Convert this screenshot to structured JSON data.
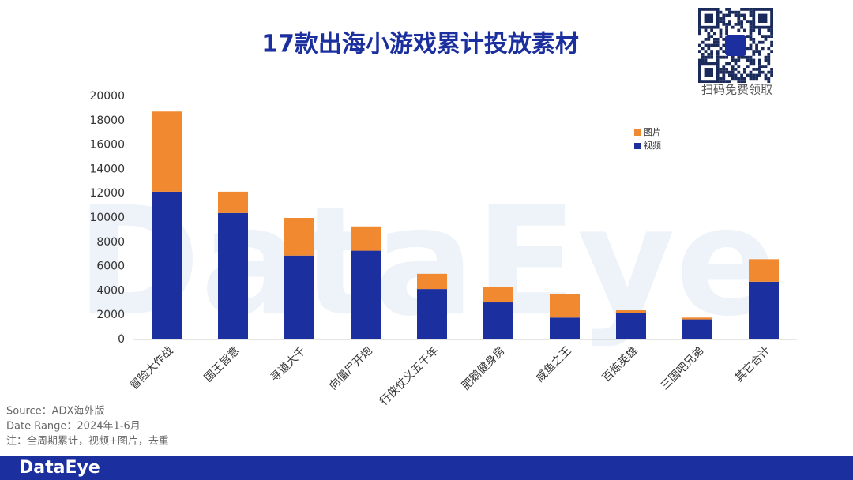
{
  "chart_data": {
    "type": "stacked_bar",
    "title": "17款出海小游戏累计投放素材",
    "categories": [
      "冒险大作战",
      "国王旨意",
      "寻道大千",
      "向僵尸开炮",
      "行侠仗义五千年",
      "肥鹅健身房",
      "咸鱼之王",
      "百炼英雄",
      "三国吧兄弟",
      "其它合计"
    ],
    "series": [
      {
        "name": "视频",
        "color": "#1b2f9e",
        "values": [
          12150,
          10400,
          6900,
          7300,
          4150,
          3050,
          1800,
          2150,
          1650,
          4750
        ]
      },
      {
        "name": "图片",
        "color": "#f0892f",
        "values": [
          6600,
          1750,
          3100,
          2000,
          1250,
          1250,
          1950,
          250,
          150,
          1850
        ]
      }
    ],
    "ylim": [
      0,
      20000
    ],
    "yticks": [
      0,
      2000,
      4000,
      6000,
      8000,
      10000,
      12000,
      14000,
      16000,
      18000,
      20000
    ],
    "grid": false,
    "legend": "upper right"
  },
  "notes": [
    "Source：ADX海外版",
    "Date Range：2024年1-6月",
    "注：全周期累计，视频+图片，去重"
  ],
  "qr_caption": "扫码免费领取",
  "brand": "DataEye"
}
